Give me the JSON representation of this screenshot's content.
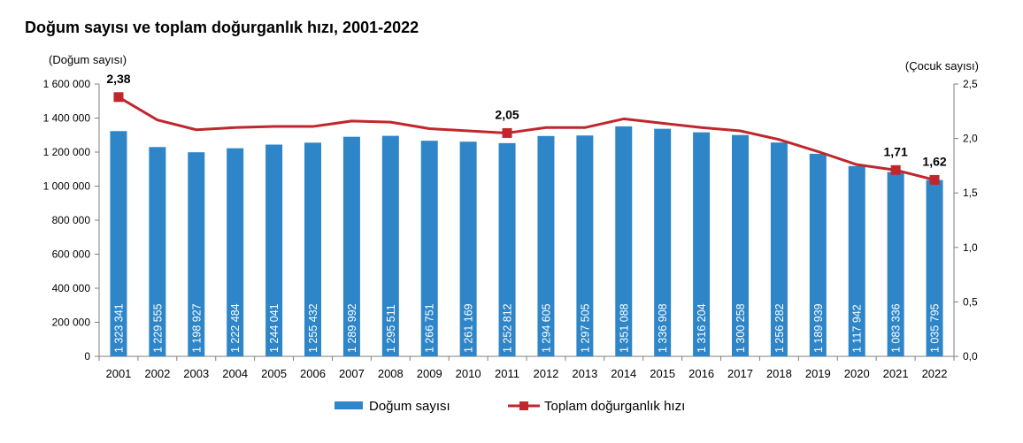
{
  "chart_data": {
    "type": "bar",
    "title": "Doğum sayısı ve toplam doğurganlık hızı, 2001-2022",
    "ylabel_left": "(Doğum sayısı)",
    "ylabel_right": "(Çocuk sayısı)",
    "categories": [
      "2001",
      "2002",
      "2003",
      "2004",
      "2005",
      "2006",
      "2007",
      "2008",
      "2009",
      "2010",
      "2011",
      "2012",
      "2013",
      "2014",
      "2015",
      "2016",
      "2017",
      "2018",
      "2019",
      "2020",
      "2021",
      "2022"
    ],
    "ylim_left": [
      0,
      1600000
    ],
    "yticks_left": [
      "0",
      "200 000",
      "400 000",
      "600 000",
      "800 000",
      "1 000 000",
      "1 200 000",
      "1 400 000",
      "1 600 000"
    ],
    "ylim_right": [
      0,
      2.5
    ],
    "yticks_right": [
      "0,0",
      "0,5",
      "1,0",
      "1,5",
      "2,0",
      "2,5"
    ],
    "grid": false,
    "legend_position": "bottom",
    "series": [
      {
        "name": "Doğum sayısı",
        "type": "bar",
        "axis": "left",
        "color": "#2e86c8",
        "values": [
          1323341,
          1229555,
          1198927,
          1222484,
          1244041,
          1255432,
          1289992,
          1295511,
          1266751,
          1261169,
          1252812,
          1294605,
          1297505,
          1351088,
          1336908,
          1316204,
          1300258,
          1256282,
          1189939,
          1117942,
          1083336,
          1035795
        ],
        "labels": [
          "1 323 341",
          "1 229 555",
          "1 198 927",
          "1 222 484",
          "1 244 041",
          "1 255 432",
          "1 289 992",
          "1 295 511",
          "1 266 751",
          "1 261 169",
          "1 252 812",
          "1 294 605",
          "1 297 505",
          "1 351 088",
          "1 336 908",
          "1 316 204",
          "1 300 258",
          "1 256 282",
          "1 189 939",
          "1 117 942",
          "1 083 336",
          "1 035 795"
        ]
      },
      {
        "name": "Toplam doğurganlık hızı",
        "type": "line",
        "axis": "right",
        "color": "#c0272d",
        "values": [
          2.38,
          2.17,
          2.08,
          2.1,
          2.11,
          2.11,
          2.16,
          2.15,
          2.09,
          2.07,
          2.05,
          2.1,
          2.1,
          2.18,
          2.14,
          2.1,
          2.07,
          1.99,
          1.88,
          1.76,
          1.71,
          1.62
        ],
        "marked_points": [
          {
            "index": 0,
            "label": "2,38"
          },
          {
            "index": 10,
            "label": "2,05"
          },
          {
            "index": 20,
            "label": "1,71"
          },
          {
            "index": 21,
            "label": "1,62"
          }
        ]
      }
    ]
  }
}
